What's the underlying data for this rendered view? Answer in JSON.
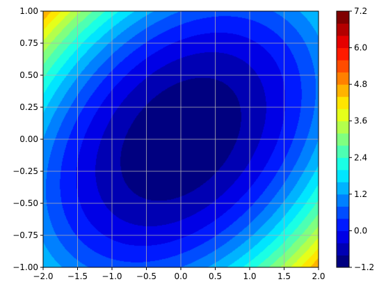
{
  "chart_data": {
    "type": "contourf",
    "title": "",
    "xlabel": "",
    "ylabel": "",
    "xlim": [
      -2.0,
      2.0
    ],
    "ylim": [
      -1.0,
      1.0
    ],
    "grid": true,
    "colormap": "jet",
    "function": "z = 0.6*x^2 - 0.8*x*y + 2*y^2 - 1.2",
    "levels": [
      -1.2,
      -0.8,
      -0.4,
      0.0,
      0.4,
      0.8,
      1.2,
      1.6,
      2.0,
      2.4,
      2.8,
      3.2,
      3.6,
      4.0,
      4.4,
      4.8,
      5.2,
      5.6,
      6.0,
      6.4,
      6.8,
      7.2
    ],
    "x_ticks": [
      "−2.0",
      "−1.5",
      "−1.0",
      "−0.5",
      "0.0",
      "0.5",
      "1.0",
      "1.5",
      "2.0"
    ],
    "x_tick_values": [
      -2.0,
      -1.5,
      -1.0,
      -0.5,
      0.0,
      0.5,
      1.0,
      1.5,
      2.0
    ],
    "y_ticks": [
      "−1.00",
      "−0.75",
      "−0.50",
      "−0.25",
      "0.00",
      "0.25",
      "0.50",
      "0.75",
      "1.00"
    ],
    "y_tick_values": [
      -1.0,
      -0.75,
      -0.5,
      -0.25,
      0.0,
      0.25,
      0.5,
      0.75,
      1.0
    ],
    "colorbar": {
      "ticks": [
        "−1.2",
        "0.0",
        "1.2",
        "2.4",
        "3.6",
        "4.8",
        "6.0",
        "7.2"
      ],
      "tick_values": [
        -1.2,
        0.0,
        1.2,
        2.4,
        3.6,
        4.8,
        6.0,
        7.2
      ]
    }
  }
}
